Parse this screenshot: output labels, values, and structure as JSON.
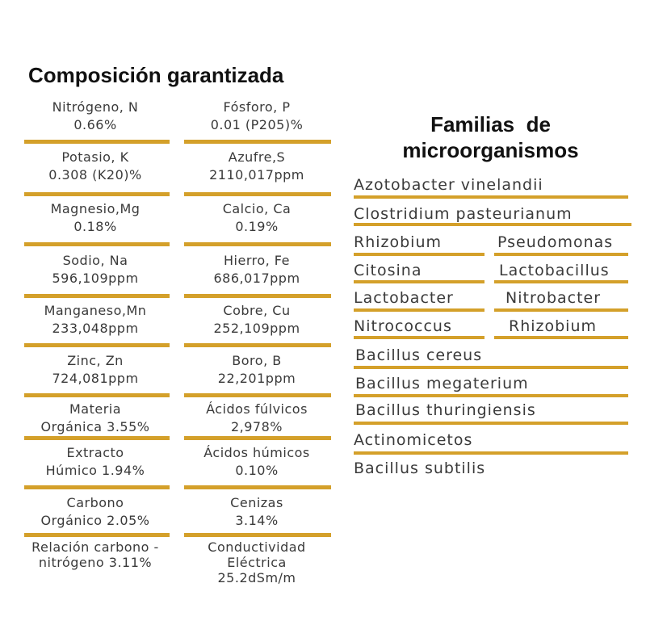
{
  "composition": {
    "title": "Composición garantizada",
    "left": [
      {
        "name": "Nitrógeno, N",
        "value": "0.66%"
      },
      {
        "name": "Potasio, K",
        "value": "0.308 (K20)%"
      },
      {
        "name": "Magnesio,Mg",
        "value": "0.18%"
      },
      {
        "name": "Sodio, Na",
        "value": "596,109ppm"
      },
      {
        "name": "Manganeso,Mn",
        "value": "233,048ppm"
      },
      {
        "name": "Zinc, Zn",
        "value": "724,081ppm"
      },
      {
        "name": "Materia",
        "value": "Orgánica 3.55%"
      },
      {
        "name": "Extracto",
        "value": "Húmico 1.94%"
      },
      {
        "name": "Carbono",
        "value": "Orgánico 2.05%"
      },
      {
        "name": "Relación carbono -",
        "value": "nitrógeno 3.11%"
      }
    ],
    "right": [
      {
        "name": "Fósforo, P",
        "value": "0.01 (P205)%"
      },
      {
        "name": "Azufre,S",
        "value": "2110,017ppm"
      },
      {
        "name": "Calcio, Ca",
        "value": "0.19%"
      },
      {
        "name": "Hierro, Fe",
        "value": "686,017ppm"
      },
      {
        "name": "Cobre, Cu",
        "value": "252,109ppm"
      },
      {
        "name": "Boro, B",
        "value": "22,201ppm"
      },
      {
        "name": "Ácidos fúlvicos",
        "value": "2,978%"
      },
      {
        "name": "Ácidos húmicos",
        "value": "0.10%"
      },
      {
        "name": "Cenizas",
        "value": "3.14%"
      },
      {
        "name": "Conductividad Eléctrica",
        "value": "25.2dSm/m"
      }
    ]
  },
  "microorganisms": {
    "title_line1": "Familias  de",
    "title_line2": "microorganismos",
    "items": [
      "Azotobacter vinelandii",
      "Clostridium pasteurianum",
      "Rhizobium",
      "Pseudomonas",
      "Citosina",
      "Lactobacillus",
      "Lactobacter",
      "Nitrobacter",
      "Nitrococcus",
      "Rhizobium",
      "Bacillus cereus",
      "Bacillus megaterium",
      "Bacillus thuringiensis",
      "Actinomicetos",
      "Bacillus subtilis"
    ]
  },
  "colors": {
    "accent": "#d4a02a",
    "text": "#3a3a3a"
  }
}
